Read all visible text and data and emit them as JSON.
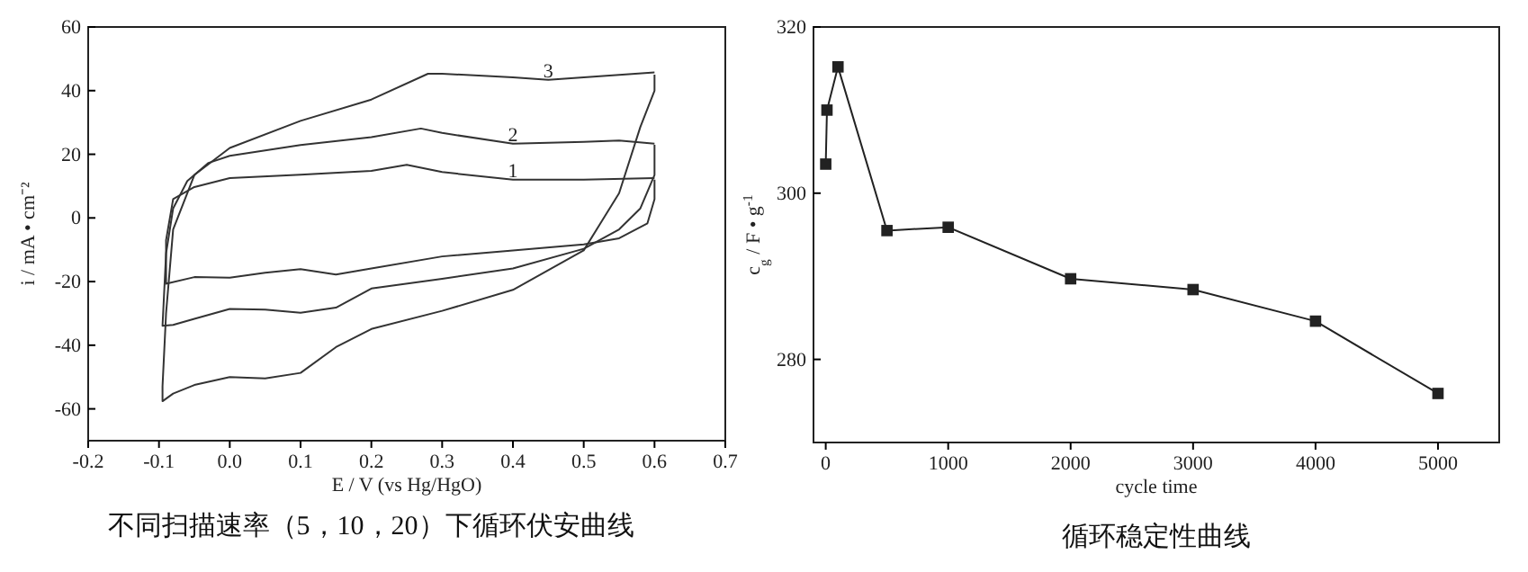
{
  "chart_data": [
    {
      "type": "line",
      "title": "不同扫描速率（5，10，20）下循环伏安曲线",
      "xlabel": "E / V (vs Hg/HgO)",
      "ylabel": "i / mA • cm⁻²",
      "xlim": [
        -0.2,
        0.7
      ],
      "ylim": [
        -70,
        60
      ],
      "xticks": [
        -0.2,
        -0.1,
        {
          "value": 0,
          "label": "0.0"
        },
        0.1,
        0.2,
        0.3,
        0.4,
        0.5,
        0.6,
        0.7
      ],
      "yticks": [
        -60,
        -40,
        -20,
        0,
        20,
        40,
        60
      ],
      "grid": false,
      "marker": "none",
      "line_style": "solid",
      "series": [
        {
          "name": "1",
          "color": "#333333",
          "x": [
            0.6,
            0.5,
            0.4,
            0.3,
            0.25,
            0.2,
            0.1,
            0.0,
            -0.05,
            -0.08,
            -0.09,
            -0.09,
            -0.05,
            0.0,
            0.05,
            0.1,
            0.15,
            0.2,
            0.3,
            0.4,
            0.5,
            0.55,
            0.59,
            0.6,
            0.6
          ],
          "values": [
            12.5,
            12,
            12,
            14.4,
            16.7,
            14.8,
            13.6,
            12.5,
            9.7,
            5.9,
            -7,
            -20.7,
            -18.6,
            -18.8,
            -17.2,
            -16.1,
            -17.8,
            -15.9,
            -12.1,
            -10.2,
            -8.3,
            -6.4,
            -1.7,
            5.9,
            12
          ]
        },
        {
          "name": "2",
          "color": "#333333",
          "x": [
            0.6,
            0.55,
            0.5,
            0.4,
            0.3,
            0.27,
            0.2,
            0.1,
            0.0,
            -0.03,
            -0.06,
            -0.08,
            -0.09,
            -0.095,
            -0.08,
            -0.05,
            0.0,
            0.05,
            0.1,
            0.15,
            0.2,
            0.3,
            0.4,
            0.5,
            0.55,
            0.58,
            0.6,
            0.6
          ],
          "values": [
            23.3,
            24.3,
            23.9,
            23.3,
            26.7,
            28.1,
            25.4,
            22.9,
            19.5,
            17.3,
            11.6,
            3,
            -11.2,
            -33.9,
            -33.6,
            -31.7,
            -28.6,
            -28.8,
            -29.8,
            -28.2,
            -22.2,
            -19.1,
            -15.9,
            -9.7,
            -3.6,
            3,
            13.5,
            23
          ]
        },
        {
          "name": "3",
          "color": "#333333",
          "x": [
            0.6,
            0.5,
            0.45,
            0.4,
            0.3,
            0.28,
            0.2,
            0.1,
            0.0,
            -0.05,
            -0.08,
            -0.09,
            -0.095,
            -0.095,
            -0.08,
            -0.05,
            0.0,
            0.05,
            0.1,
            0.15,
            0.2,
            0.3,
            0.4,
            0.5,
            0.55,
            0.58,
            0.6,
            0.6
          ],
          "values": [
            45.7,
            44.2,
            43.4,
            44.2,
            45.3,
            45.3,
            37.2,
            30.5,
            22,
            13.5,
            -3.6,
            -30,
            -52.9,
            -57.6,
            -55.2,
            -52.5,
            -50,
            -50.4,
            -48.7,
            -40.6,
            -34.9,
            -29.2,
            -22.6,
            -10.2,
            7.8,
            28.6,
            40,
            45
          ]
        }
      ]
    },
    {
      "type": "line",
      "title": "循环稳定性曲线",
      "xlabel": "cycle time",
      "ylabel": "c$_{g}$ / F • g$^{-1}$",
      "xlim": [
        -100,
        5500
      ],
      "ylim": [
        270,
        320
      ],
      "xticks": [
        0,
        1000,
        2000,
        3000,
        4000,
        5000
      ],
      "yticks": [
        280,
        300,
        320
      ],
      "grid": false,
      "marker": "square",
      "line_style": "solid",
      "series": [
        {
          "color": "#222222",
          "x": [
            0,
            10,
            100,
            500,
            1000,
            2000,
            3000,
            4000,
            5000
          ],
          "values": [
            303.5,
            310,
            315.2,
            295.5,
            295.9,
            289.7,
            288.4,
            284.6,
            275.9
          ]
        }
      ]
    }
  ]
}
